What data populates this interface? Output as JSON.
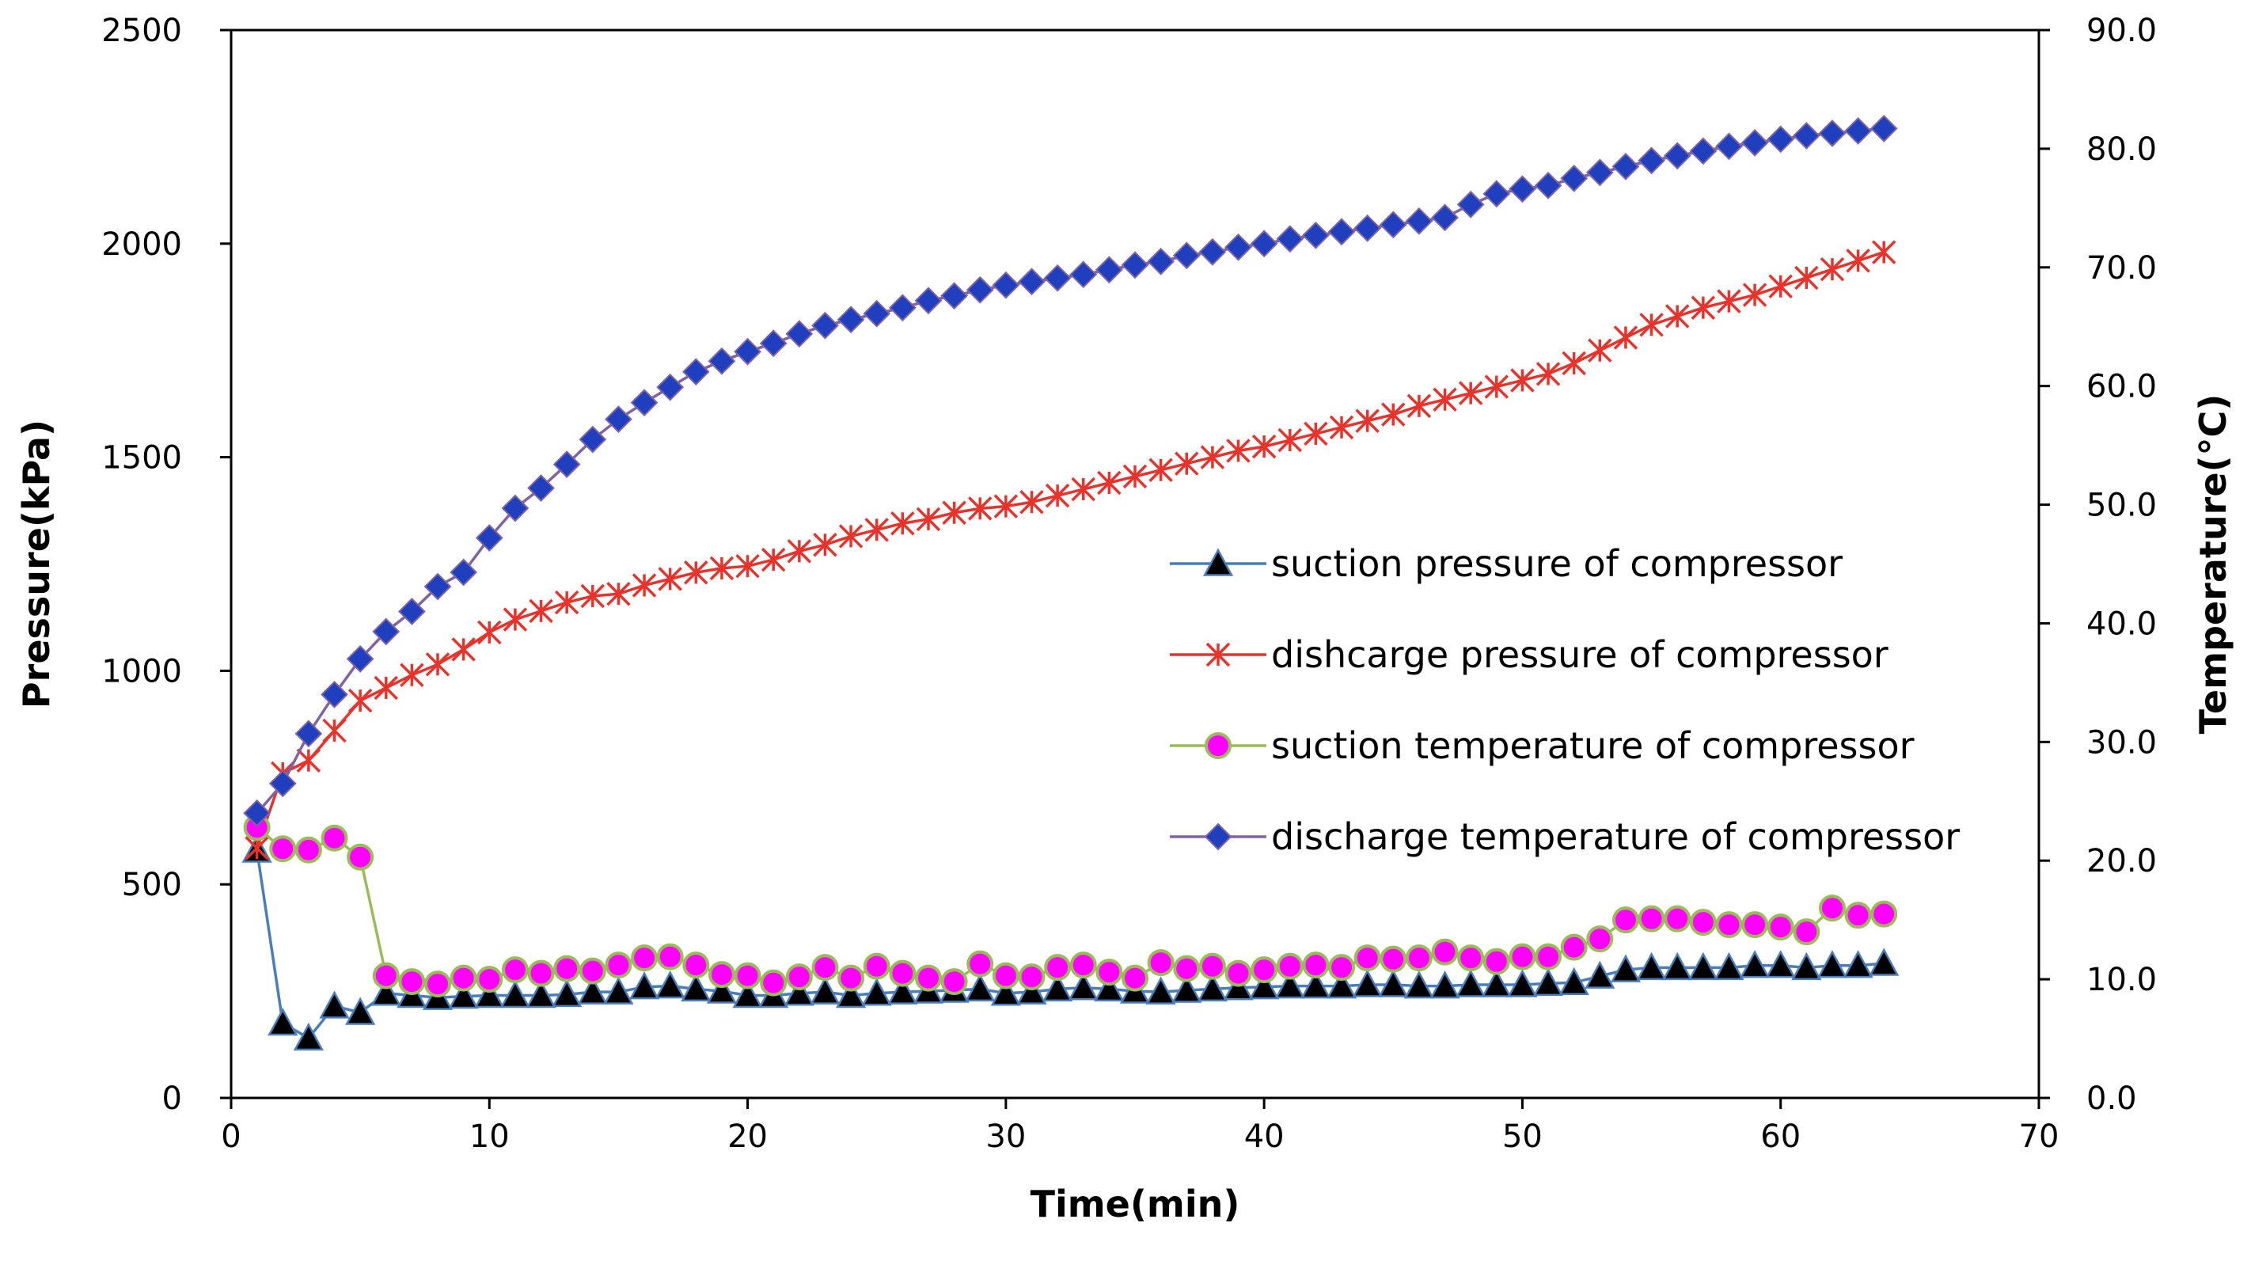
{
  "chart_data": {
    "type": "line",
    "title": "",
    "xlabel": "Time(min)",
    "ylabel_left": "Pressure(kPa)",
    "ylabel_right": "Temperature(°C)",
    "xlim": [
      0,
      70
    ],
    "ylim_left": [
      0,
      2500
    ],
    "ylim_right": [
      0,
      90
    ],
    "x_ticks": [
      "0",
      "10",
      "20",
      "30",
      "40",
      "50",
      "60",
      "70"
    ],
    "y_left_ticks": [
      "0",
      "500",
      "1000",
      "1500",
      "2000",
      "2500"
    ],
    "y_right_ticks": [
      "0.0",
      "10.0",
      "20.0",
      "30.0",
      "40.0",
      "50.0",
      "60.0",
      "70.0",
      "80.0",
      "90.0"
    ],
    "grid": false,
    "legend_position": "right-middle",
    "series": [
      {
        "name": "suction pressure of compressor",
        "axis": "left",
        "color": "#4a7ebb",
        "marker": "triangle",
        "marker_fill": "#000000",
        "x": [
          1,
          2,
          3,
          4,
          5,
          6,
          7,
          8,
          9,
          10,
          11,
          12,
          13,
          14,
          15,
          16,
          17,
          18,
          19,
          20,
          21,
          22,
          23,
          24,
          25,
          26,
          27,
          28,
          29,
          30,
          31,
          32,
          33,
          34,
          35,
          36,
          37,
          38,
          39,
          40,
          41,
          42,
          43,
          44,
          45,
          46,
          47,
          48,
          49,
          50,
          51,
          52,
          53,
          54,
          55,
          56,
          57,
          58,
          59,
          60,
          61,
          62,
          63,
          64
        ],
        "values": [
          580,
          175,
          140,
          215,
          200,
          245,
          240,
          235,
          238,
          240,
          240,
          240,
          242,
          248,
          248,
          260,
          262,
          255,
          250,
          240,
          240,
          245,
          248,
          240,
          245,
          248,
          250,
          252,
          255,
          245,
          248,
          255,
          258,
          255,
          250,
          248,
          252,
          255,
          258,
          260,
          262,
          262,
          262,
          265,
          265,
          262,
          262,
          265,
          265,
          265,
          268,
          270,
          285,
          300,
          305,
          305,
          305,
          305,
          310,
          310,
          305,
          310,
          310,
          315
        ]
      },
      {
        "name": "dishcarge pressure of compressor",
        "axis": "left",
        "color": "#e8322c",
        "marker": "asterisk",
        "marker_fill": "#e8322c",
        "x": [
          1,
          2,
          3,
          4,
          5,
          6,
          7,
          8,
          9,
          10,
          11,
          12,
          13,
          14,
          15,
          16,
          17,
          18,
          19,
          20,
          21,
          22,
          23,
          24,
          25,
          26,
          27,
          28,
          29,
          30,
          31,
          32,
          33,
          34,
          35,
          36,
          37,
          38,
          39,
          40,
          41,
          42,
          43,
          44,
          45,
          46,
          47,
          48,
          49,
          50,
          51,
          52,
          53,
          54,
          55,
          56,
          57,
          58,
          59,
          60,
          61,
          62,
          63,
          64
        ],
        "values": [
          585,
          760,
          790,
          860,
          930,
          960,
          990,
          1015,
          1050,
          1090,
          1120,
          1140,
          1160,
          1175,
          1180,
          1200,
          1215,
          1230,
          1240,
          1245,
          1260,
          1280,
          1295,
          1315,
          1330,
          1345,
          1355,
          1370,
          1380,
          1385,
          1395,
          1410,
          1425,
          1440,
          1455,
          1470,
          1485,
          1500,
          1515,
          1525,
          1540,
          1555,
          1570,
          1585,
          1600,
          1620,
          1635,
          1650,
          1665,
          1680,
          1695,
          1720,
          1750,
          1780,
          1810,
          1830,
          1850,
          1865,
          1880,
          1900,
          1920,
          1940,
          1960,
          1980
        ]
      },
      {
        "name": "suction temperature of compressor",
        "axis": "right",
        "color": "#9bbb59",
        "marker": "circle",
        "marker_fill": "#ff00ff",
        "x": [
          1,
          2,
          3,
          4,
          5,
          6,
          7,
          8,
          9,
          10,
          11,
          12,
          13,
          14,
          15,
          16,
          17,
          18,
          19,
          20,
          21,
          22,
          23,
          24,
          25,
          26,
          27,
          28,
          29,
          30,
          31,
          32,
          33,
          34,
          35,
          36,
          37,
          38,
          39,
          40,
          41,
          42,
          43,
          44,
          45,
          46,
          47,
          48,
          49,
          50,
          51,
          52,
          53,
          54,
          55,
          56,
          57,
          58,
          59,
          60,
          61,
          62,
          63,
          64
        ],
        "values": [
          22.8,
          21.0,
          20.9,
          21.9,
          20.3,
          10.3,
          9.8,
          9.6,
          10.1,
          10.0,
          10.8,
          10.5,
          10.9,
          10.7,
          11.2,
          11.8,
          11.9,
          11.2,
          10.4,
          10.3,
          9.7,
          10.2,
          11.0,
          10.1,
          11.1,
          10.5,
          10.1,
          9.8,
          11.3,
          10.3,
          10.2,
          11.0,
          11.2,
          10.6,
          10.1,
          11.4,
          10.9,
          11.1,
          10.5,
          10.8,
          11.1,
          11.2,
          11.0,
          11.8,
          11.7,
          11.8,
          12.3,
          11.8,
          11.5,
          11.9,
          11.9,
          12.7,
          13.4,
          15.0,
          15.1,
          15.1,
          14.8,
          14.6,
          14.6,
          14.4,
          14.0,
          16.0,
          15.4,
          15.5
        ]
      },
      {
        "name": "discharge temperature of compressor",
        "axis": "right",
        "color": "#8064a2",
        "marker": "diamond",
        "marker_fill": "#1f3fbf",
        "x": [
          1,
          2,
          3,
          4,
          5,
          6,
          7,
          8,
          9,
          10,
          11,
          12,
          13,
          14,
          15,
          16,
          17,
          18,
          19,
          20,
          21,
          22,
          23,
          24,
          25,
          26,
          27,
          28,
          29,
          30,
          31,
          32,
          33,
          34,
          35,
          36,
          37,
          38,
          39,
          40,
          41,
          42,
          43,
          44,
          45,
          46,
          47,
          48,
          49,
          50,
          51,
          52,
          53,
          54,
          55,
          56,
          57,
          58,
          59,
          60,
          61,
          62,
          63,
          64
        ],
        "values": [
          24.0,
          26.5,
          30.7,
          34.0,
          37.0,
          39.3,
          41.0,
          43.1,
          44.3,
          47.2,
          49.7,
          51.4,
          53.4,
          55.5,
          57.2,
          58.6,
          59.9,
          61.2,
          62.1,
          62.9,
          63.6,
          64.4,
          65.1,
          65.6,
          66.1,
          66.6,
          67.2,
          67.6,
          68.1,
          68.5,
          68.8,
          69.1,
          69.4,
          69.8,
          70.2,
          70.5,
          71.0,
          71.3,
          71.7,
          72.0,
          72.4,
          72.7,
          73.0,
          73.3,
          73.6,
          73.9,
          74.2,
          75.3,
          76.2,
          76.6,
          76.9,
          77.5,
          78.0,
          78.5,
          79.0,
          79.4,
          79.8,
          80.2,
          80.5,
          80.8,
          81.1,
          81.3,
          81.5,
          81.7
        ]
      }
    ]
  }
}
